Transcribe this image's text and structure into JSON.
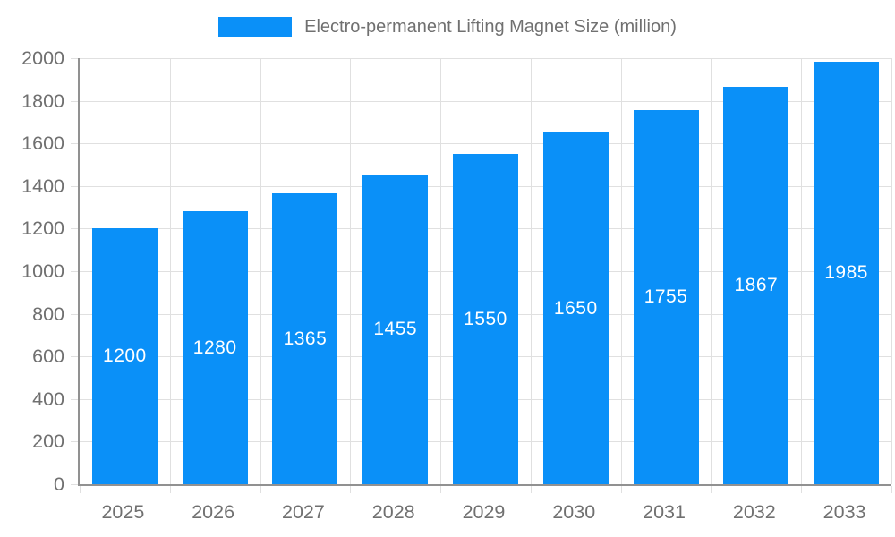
{
  "colors": {
    "bar": "#0a90f8",
    "grid": "#e0e0e0",
    "axis": "#919191",
    "text": "#707070",
    "value_label": "#ffffff",
    "background": "#ffffff"
  },
  "legend": {
    "label": "Electro-permanent Lifting Magnet Size (million)"
  },
  "chart_data": {
    "type": "bar",
    "title": "Electro-permanent Lifting Magnet Size (million)",
    "categories": [
      "2025",
      "2026",
      "2027",
      "2028",
      "2029",
      "2030",
      "2031",
      "2032",
      "2033"
    ],
    "values": [
      1200,
      1280,
      1365,
      1455,
      1550,
      1650,
      1755,
      1867,
      1985
    ],
    "xlabel": "",
    "ylabel": "",
    "ylim": [
      0,
      2000
    ],
    "ytick_step": 200,
    "yticks": [
      0,
      200,
      400,
      600,
      800,
      1000,
      1200,
      1400,
      1600,
      1800,
      2000
    ],
    "grid": true,
    "legend_position": "top",
    "value_labels": "inside-center"
  }
}
